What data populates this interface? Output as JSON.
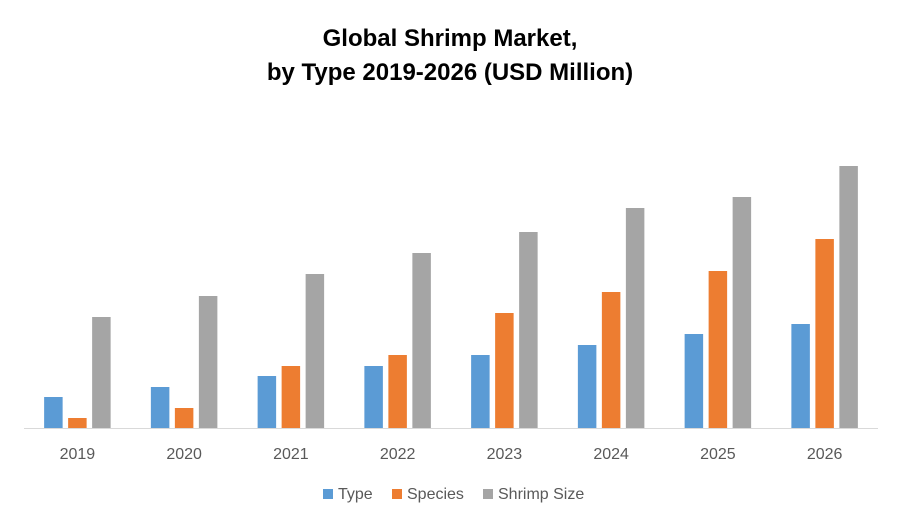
{
  "chart_data": {
    "type": "bar",
    "title": [
      "Global Shrimp Market,",
      "by Type 2019-2026 (USD Million)"
    ],
    "xlabel": "",
    "ylabel": "",
    "categories": [
      "2019",
      "2020",
      "2021",
      "2022",
      "2023",
      "2024",
      "2025",
      "2026"
    ],
    "series": [
      {
        "name": "Type",
        "color": "#5B9BD5",
        "values": [
          31,
          41,
          52,
          62,
          73,
          83,
          94,
          104
        ]
      },
      {
        "name": "Species",
        "color": "#ED7D31",
        "values": [
          10,
          20,
          62,
          73,
          115,
          136,
          157,
          189
        ]
      },
      {
        "name": "Shrimp Size",
        "color": "#A5A5A5",
        "values": [
          111,
          132,
          154,
          175,
          196,
          220,
          231,
          262
        ]
      }
    ],
    "ylim": [
      0,
      300
    ],
    "y_axis_shown": false,
    "grid": false,
    "legend": "bottom"
  }
}
